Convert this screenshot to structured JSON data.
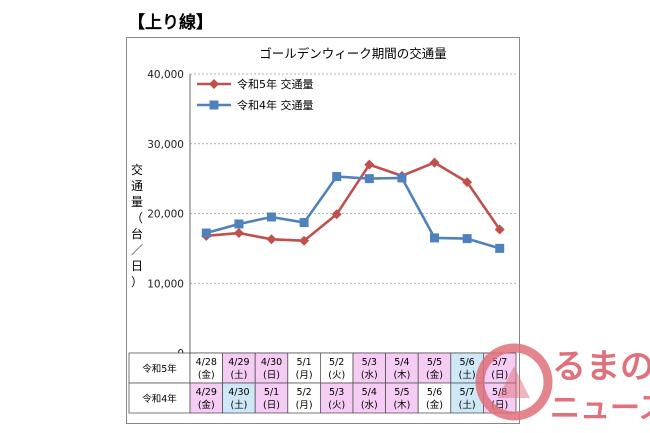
{
  "heading": "【上り線】",
  "chart_data": {
    "type": "line",
    "title": "ゴールデンウィーク期間の交通量",
    "ylabel": "交通量（台／日）",
    "ylim": [
      0,
      40000
    ],
    "yticks": [
      "0",
      "10,000",
      "20,000",
      "30,000",
      "40,000"
    ],
    "ytick_values": [
      0,
      10000,
      20000,
      30000,
      40000
    ],
    "grid": true,
    "legend_position": "top-left",
    "series": [
      {
        "name": "令和5年 交通量",
        "color": "#c0504d",
        "marker": "diamond",
        "values": [
          16800,
          17200,
          16300,
          16100,
          19900,
          27000,
          25400,
          27300,
          24500,
          17700
        ]
      },
      {
        "name": "令和4年 交通量",
        "color": "#4f81bd",
        "marker": "square",
        "values": [
          17200,
          18500,
          19500,
          18700,
          25300,
          25000,
          25100,
          16500,
          16400,
          15000
        ]
      }
    ]
  },
  "date_table": {
    "rows": [
      {
        "label": "令和5年",
        "cells": [
          {
            "date": "4/28",
            "day": "(金)",
            "color": "#ffffff"
          },
          {
            "date": "4/29",
            "day": "(土)",
            "color": "#f4ccf4"
          },
          {
            "date": "4/30",
            "day": "(日)",
            "color": "#f4ccf4"
          },
          {
            "date": "5/1",
            "day": "(月)",
            "color": "#ffffff"
          },
          {
            "date": "5/2",
            "day": "(火)",
            "color": "#ffffff"
          },
          {
            "date": "5/3",
            "day": "(水)",
            "color": "#f4ccf4"
          },
          {
            "date": "5/4",
            "day": "(木)",
            "color": "#f4ccf4"
          },
          {
            "date": "5/5",
            "day": "(金)",
            "color": "#f4ccf4"
          },
          {
            "date": "5/6",
            "day": "(土)",
            "color": "#cfe8f7"
          },
          {
            "date": "5/7",
            "day": "(日)",
            "color": "#f4ccf4"
          }
        ]
      },
      {
        "label": "令和4年",
        "cells": [
          {
            "date": "4/29",
            "day": "(金)",
            "color": "#f4ccf4"
          },
          {
            "date": "4/30",
            "day": "(土)",
            "color": "#cfe8f7"
          },
          {
            "date": "5/1",
            "day": "(日)",
            "color": "#f4ccf4"
          },
          {
            "date": "5/2",
            "day": "(月)",
            "color": "#ffffff"
          },
          {
            "date": "5/3",
            "day": "(火)",
            "color": "#f4ccf4"
          },
          {
            "date": "5/4",
            "day": "(水)",
            "color": "#f4ccf4"
          },
          {
            "date": "5/5",
            "day": "(木)",
            "color": "#f4ccf4"
          },
          {
            "date": "5/6",
            "day": "(金)",
            "color": "#ffffff"
          },
          {
            "date": "5/7",
            "day": "(土)",
            "color": "#cfe8f7"
          },
          {
            "date": "5/8",
            "day": "(日)",
            "color": "#f4ccf4"
          }
        ]
      }
    ]
  },
  "watermark": {
    "text_line1": "るまの",
    "text_line2": "ニュース",
    "color": "#e0707a"
  }
}
